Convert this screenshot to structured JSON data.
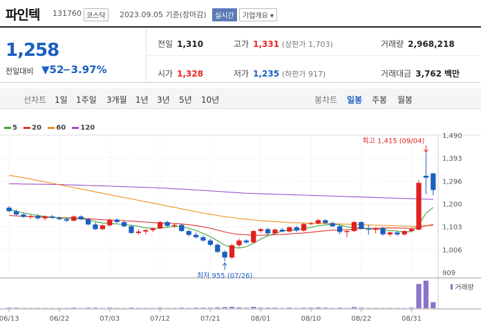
{
  "header": {
    "name": "파인텍",
    "code": "131760",
    "market": "코스닥",
    "date_info": "2023.09.05 기준(장마감)",
    "realtime": "실시간",
    "overview": "기업개요 ▾"
  },
  "summary": {
    "current_price": "1,258",
    "change_label": "전일대비",
    "change_value": "▼52",
    "change_pct": "−3.97%",
    "prev_close": {
      "label": "전일",
      "value": "1,310"
    },
    "open": {
      "label": "시가",
      "value": "1,328"
    },
    "high": {
      "label": "고가",
      "value": "1,331",
      "sub": "(상한가 1,703)"
    },
    "low": {
      "label": "저가",
      "value": "1,235",
      "sub": "(하한가 917)"
    },
    "volume": {
      "label": "거래량",
      "value": "2,968,218"
    },
    "amount": {
      "label": "거래대금",
      "value": "3,762",
      "unit": "백만"
    }
  },
  "tabs": {
    "line_chart": "선차트",
    "ranges": [
      "1일",
      "1주일",
      "3개월",
      "1년",
      "3년",
      "5년",
      "10년"
    ],
    "candle_chart": "봉차트",
    "periods": [
      "일봉",
      "주봉",
      "월봉"
    ],
    "active_period": "일봉"
  },
  "legend": [
    {
      "label": "5",
      "color": "#3aa53a"
    },
    {
      "label": "20",
      "color": "#e03030"
    },
    {
      "label": "60",
      "color": "#f08c1e"
    },
    {
      "label": "120",
      "color": "#9a4fd0"
    }
  ],
  "colors": {
    "up": "#e22020",
    "down": "#1b5fc1",
    "volume": "#8a74c9"
  },
  "chart_data": {
    "type": "candlestick",
    "y_ticks": [
      "1,490",
      "1,393",
      "1,296",
      "1,200",
      "1,103",
      "1,006",
      "909"
    ],
    "ylim": [
      909,
      1490
    ],
    "x_ticks": [
      "06/13",
      "06/22",
      "07/03",
      "07/12",
      "07/21",
      "08/01",
      "08/10",
      "08/22",
      "08/31"
    ],
    "x_tick_index": [
      0,
      7,
      14,
      21,
      28,
      35,
      42,
      49,
      56
    ],
    "ohlc": [
      [
        1183,
        1190,
        1164,
        1168
      ],
      [
        1168,
        1175,
        1150,
        1154
      ],
      [
        1154,
        1160,
        1140,
        1144
      ],
      [
        1144,
        1152,
        1136,
        1148
      ],
      [
        1148,
        1156,
        1132,
        1138
      ],
      [
        1138,
        1150,
        1130,
        1146
      ],
      [
        1146,
        1152,
        1136,
        1140
      ],
      [
        1140,
        1146,
        1130,
        1134
      ],
      [
        1134,
        1140,
        1122,
        1128
      ],
      [
        1128,
        1150,
        1124,
        1146
      ],
      [
        1146,
        1150,
        1130,
        1134
      ],
      [
        1134,
        1140,
        1108,
        1112
      ],
      [
        1112,
        1120,
        1088,
        1092
      ],
      [
        1092,
        1112,
        1088,
        1108
      ],
      [
        1108,
        1136,
        1104,
        1132
      ],
      [
        1132,
        1138,
        1118,
        1122
      ],
      [
        1122,
        1128,
        1100,
        1104
      ],
      [
        1104,
        1110,
        1072,
        1076
      ],
      [
        1076,
        1092,
        1068,
        1082
      ],
      [
        1082,
        1092,
        1070,
        1088
      ],
      [
        1088,
        1100,
        1080,
        1096
      ],
      [
        1096,
        1126,
        1092,
        1122
      ],
      [
        1122,
        1128,
        1102,
        1106
      ],
      [
        1106,
        1114,
        1096,
        1110
      ],
      [
        1110,
        1114,
        1080,
        1084
      ],
      [
        1084,
        1090,
        1062,
        1068
      ],
      [
        1068,
        1078,
        1052,
        1058
      ],
      [
        1058,
        1066,
        1040,
        1044
      ],
      [
        1044,
        1052,
        1020,
        1026
      ],
      [
        1026,
        1032,
        990,
        996
      ],
      [
        996,
        1002,
        955,
        972
      ],
      [
        972,
        1030,
        966,
        1024
      ],
      [
        1024,
        1052,
        1016,
        1044
      ],
      [
        1044,
        1050,
        1030,
        1036
      ],
      [
        1036,
        1088,
        1032,
        1084
      ],
      [
        1084,
        1098,
        1076,
        1092
      ],
      [
        1092,
        1098,
        1068,
        1074
      ],
      [
        1074,
        1096,
        1070,
        1090
      ],
      [
        1090,
        1098,
        1078,
        1082
      ],
      [
        1082,
        1104,
        1078,
        1100
      ],
      [
        1100,
        1106,
        1080,
        1086
      ],
      [
        1086,
        1118,
        1082,
        1114
      ],
      [
        1114,
        1122,
        1110,
        1116
      ],
      [
        1116,
        1136,
        1112,
        1130
      ],
      [
        1130,
        1134,
        1114,
        1118
      ],
      [
        1118,
        1124,
        1100,
        1104
      ],
      [
        1104,
        1110,
        1070,
        1080
      ],
      [
        1080,
        1090,
        1058,
        1084
      ],
      [
        1084,
        1126,
        1080,
        1122
      ],
      [
        1122,
        1126,
        1090,
        1094
      ],
      [
        1094,
        1110,
        1068,
        1090
      ],
      [
        1090,
        1100,
        1074,
        1096
      ],
      [
        1096,
        1102,
        1064,
        1070
      ],
      [
        1070,
        1082,
        1062,
        1078
      ],
      [
        1078,
        1086,
        1064,
        1070
      ],
      [
        1070,
        1088,
        1064,
        1084
      ],
      [
        1084,
        1098,
        1080,
        1092
      ],
      [
        1090,
        1300,
        1088,
        1288
      ],
      [
        1318,
        1415,
        1240,
        1310
      ],
      [
        1328,
        1331,
        1235,
        1258
      ]
    ],
    "ma5": [
      1176,
      1168,
      1161,
      1155,
      1150,
      1146,
      1143,
      1140,
      1138,
      1137,
      1136,
      1131,
      1124,
      1118,
      1116,
      1114,
      1112,
      1108,
      1104,
      1098,
      1095,
      1096,
      1100,
      1104,
      1103,
      1096,
      1086,
      1074,
      1060,
      1043,
      1024,
      1016,
      1012,
      1018,
      1032,
      1050,
      1064,
      1074,
      1084,
      1088,
      1090,
      1094,
      1100,
      1106,
      1110,
      1114,
      1110,
      1102,
      1098,
      1098,
      1094,
      1092,
      1090,
      1086,
      1084,
      1080,
      1082,
      1110,
      1160,
      1184
    ],
    "ma20": [
      1150,
      1148,
      1146,
      1145,
      1144,
      1143,
      1142,
      1141,
      1140,
      1139,
      1138,
      1136,
      1134,
      1132,
      1131,
      1130,
      1128,
      1126,
      1124,
      1122,
      1120,
      1118,
      1117,
      1116,
      1114,
      1111,
      1107,
      1102,
      1096,
      1088,
      1080,
      1074,
      1070,
      1068,
      1066,
      1066,
      1067,
      1068,
      1070,
      1072,
      1074,
      1076,
      1079,
      1082,
      1085,
      1088,
      1089,
      1090,
      1092,
      1094,
      1095,
      1096,
      1097,
      1097,
      1097,
      1096,
      1095,
      1099,
      1106,
      1112
    ],
    "ma60": [
      1320,
      1315,
      1310,
      1304,
      1298,
      1292,
      1286,
      1280,
      1274,
      1268,
      1262,
      1256,
      1250,
      1244,
      1238,
      1232,
      1226,
      1220,
      1214,
      1208,
      1202,
      1196,
      1190,
      1184,
      1178,
      1172,
      1166,
      1160,
      1155,
      1150,
      1145,
      1141,
      1137,
      1134,
      1131,
      1128,
      1126,
      1124,
      1122,
      1120,
      1119,
      1118,
      1117,
      1116,
      1116,
      1115,
      1114,
      1113,
      1112,
      1111,
      1110,
      1109,
      1108,
      1107,
      1106,
      1105,
      1104,
      1104,
      1106,
      1108
    ],
    "ma120": [
      1284,
      1284,
      1283,
      1283,
      1282,
      1282,
      1281,
      1281,
      1280,
      1279,
      1278,
      1277,
      1276,
      1275,
      1274,
      1273,
      1272,
      1271,
      1270,
      1269,
      1268,
      1266,
      1265,
      1263,
      1262,
      1260,
      1258,
      1256,
      1254,
      1252,
      1250,
      1248,
      1246,
      1244,
      1243,
      1242,
      1241,
      1240,
      1239,
      1238,
      1237,
      1236,
      1235,
      1234,
      1233,
      1232,
      1231,
      1230,
      1229,
      1228,
      1227,
      1226,
      1225,
      1224,
      1223,
      1222,
      1221,
      1220,
      1219,
      1218
    ],
    "volume_ratio": [
      0.02,
      0.02,
      0.01,
      0.01,
      0.01,
      0.01,
      0.01,
      0.01,
      0.01,
      0.02,
      0.01,
      0.02,
      0.02,
      0.01,
      0.02,
      0.01,
      0.01,
      0.02,
      0.01,
      0.01,
      0.01,
      0.02,
      0.01,
      0.01,
      0.02,
      0.01,
      0.02,
      0.02,
      0.02,
      0.03,
      0.04,
      0.05,
      0.03,
      0.02,
      0.05,
      0.02,
      0.02,
      0.02,
      0.01,
      0.02,
      0.01,
      0.02,
      0.02,
      0.03,
      0.02,
      0.01,
      0.02,
      0.01,
      0.04,
      0.02,
      0.01,
      0.01,
      0.01,
      0.01,
      0.01,
      0.01,
      0.02,
      0.88,
      1.0,
      0.22
    ],
    "high_annotation": "최고 1,415 (09/04)",
    "low_annotation": "최저 955 (07/26)",
    "high_index": 58,
    "low_index": 30,
    "volume_label": "거래량"
  }
}
